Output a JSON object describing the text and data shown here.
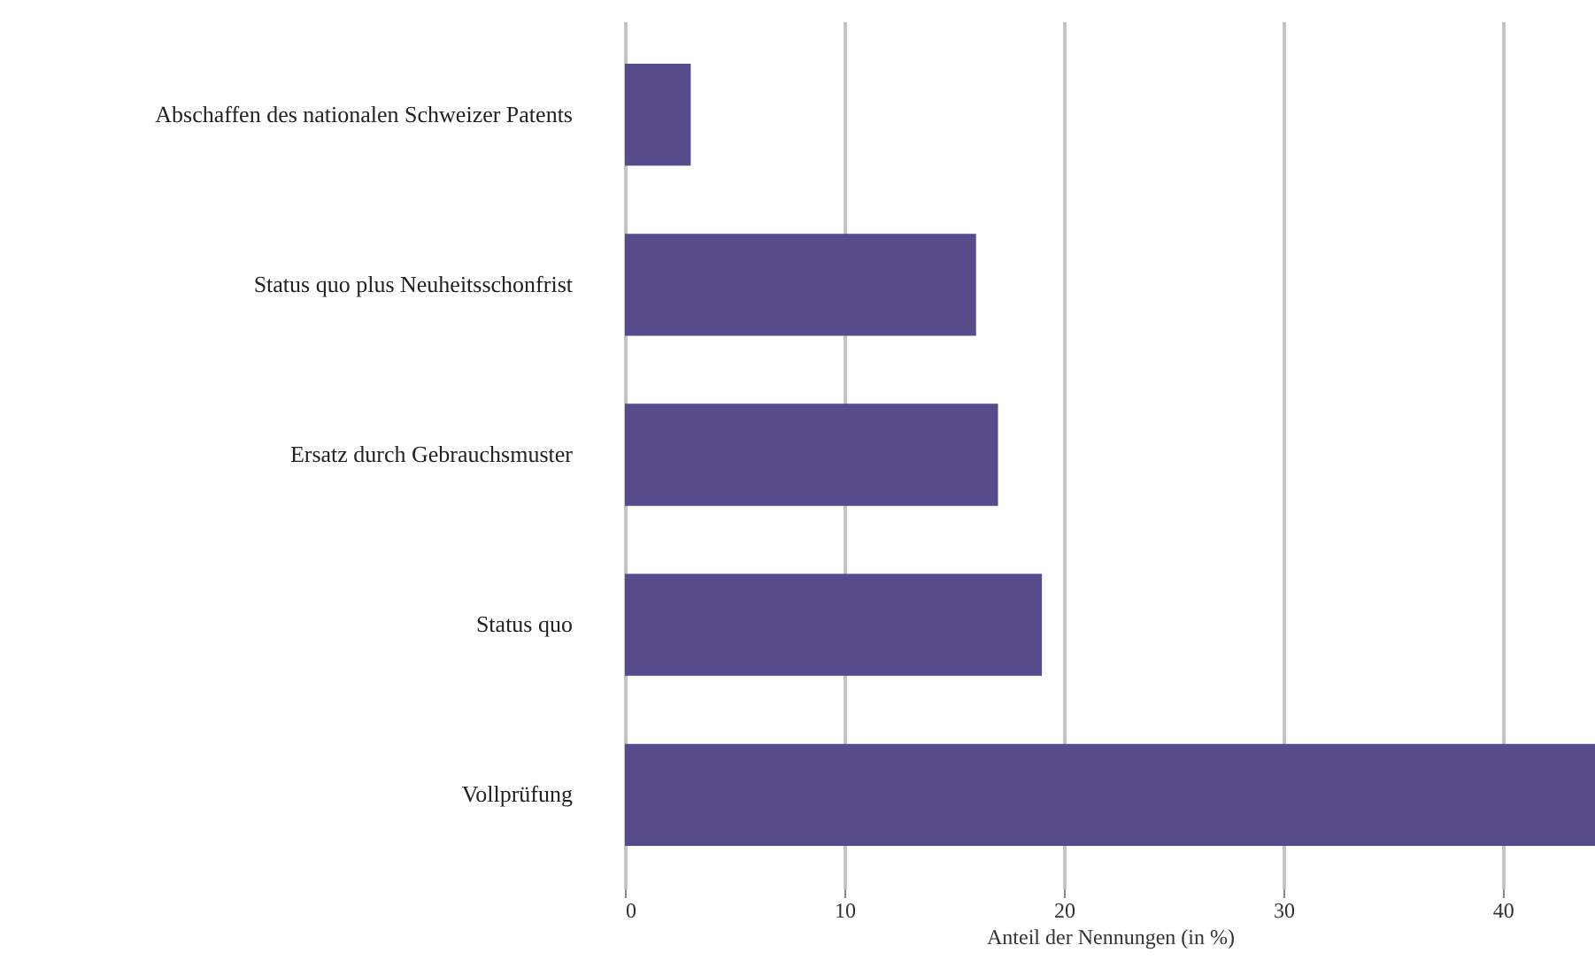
{
  "chart_data": {
    "type": "bar",
    "orientation": "horizontal",
    "xlabel": "Anteil der Nennungen (in %)",
    "categories": [
      "Abschaffen des nationalen Schweizer Patents",
      "Status quo plus Neuheitsschonfrist",
      "Ersatz durch Gebrauchsmuster",
      "Status quo",
      "Vollprüfung"
    ],
    "values": [
      3.0,
      16.0,
      17.0,
      19.0,
      44.2
    ],
    "color": "#574b8b",
    "xlim": [
      0,
      44.2
    ],
    "xticks": [
      0,
      10,
      20,
      30,
      40
    ],
    "grid": "x"
  }
}
